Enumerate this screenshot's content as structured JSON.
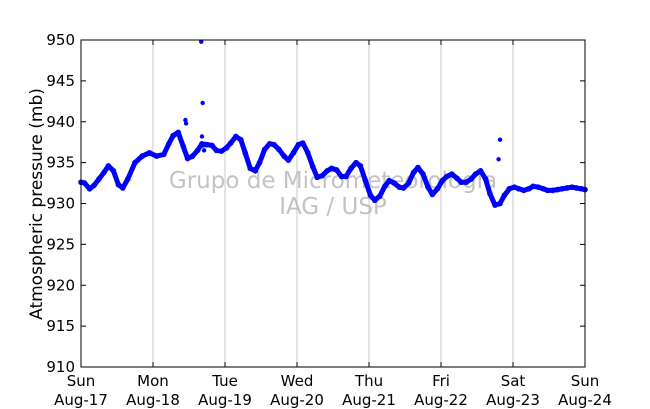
{
  "chart_data": {
    "type": "scatter",
    "title": "",
    "ylabel": "Atmospheric pressure (mb)",
    "xlabel": "",
    "ylim": [
      910,
      950
    ],
    "xlim": [
      0,
      7
    ],
    "yticks": [
      910,
      915,
      920,
      925,
      930,
      935,
      940,
      945,
      950
    ],
    "xticks": [
      {
        "pos": 0,
        "day": "Sun",
        "date": "Aug-17"
      },
      {
        "pos": 1,
        "day": "Mon",
        "date": "Aug-18"
      },
      {
        "pos": 2,
        "day": "Tue",
        "date": "Aug-19"
      },
      {
        "pos": 3,
        "day": "Wed",
        "date": "Aug-20"
      },
      {
        "pos": 4,
        "day": "Thu",
        "date": "Aug-21"
      },
      {
        "pos": 5,
        "day": "Fri",
        "date": "Aug-22"
      },
      {
        "pos": 6,
        "day": "Sat",
        "date": "Aug-23"
      },
      {
        "pos": 7,
        "day": "Sun",
        "date": "Aug-24"
      }
    ],
    "grid": "vertical",
    "color": "#0000ff",
    "watermark": [
      "Grupo de Micrometeorologia",
      "IAG / USP"
    ],
    "series": [
      {
        "x": [
          0.0,
          0.05,
          0.12,
          0.18,
          0.25,
          0.32,
          0.38,
          0.45,
          0.52,
          0.58,
          0.65,
          0.75,
          0.85,
          0.95,
          1.05,
          1.15,
          1.22,
          1.28,
          1.35,
          1.42,
          1.48,
          1.55,
          1.62,
          1.68,
          1.75,
          1.82,
          1.88,
          1.95,
          2.02,
          2.08,
          2.15,
          2.22,
          2.28,
          2.35,
          2.42,
          2.48,
          2.55,
          2.62,
          2.68,
          2.75,
          2.82,
          2.88,
          2.95,
          3.02,
          3.08,
          3.15,
          3.22,
          3.28,
          3.35,
          3.42,
          3.48,
          3.55,
          3.62,
          3.68,
          3.75,
          3.82,
          3.88,
          3.95,
          4.02,
          4.08,
          4.15,
          4.22,
          4.28,
          4.35,
          4.42,
          4.48,
          4.55,
          4.62,
          4.68,
          4.75,
          4.82,
          4.88,
          4.95,
          5.02,
          5.08,
          5.15,
          5.22,
          5.28,
          5.35,
          5.42,
          5.48,
          5.55,
          5.62,
          5.68,
          5.75,
          5.82,
          5.88,
          5.95,
          6.02,
          6.08,
          6.15,
          6.22,
          6.28,
          6.35,
          6.42,
          6.48,
          6.55,
          6.62,
          6.68,
          6.75,
          6.82,
          6.88,
          6.95,
          7.0
        ],
        "y": [
          932.6,
          932.5,
          931.8,
          932.2,
          933.0,
          933.8,
          934.6,
          934.0,
          932.3,
          931.9,
          933.0,
          935.0,
          935.8,
          936.2,
          935.8,
          936.0,
          937.3,
          938.3,
          938.7,
          937.0,
          935.5,
          935.8,
          936.5,
          937.3,
          937.2,
          937.1,
          936.5,
          936.4,
          936.8,
          937.4,
          938.2,
          937.8,
          936.2,
          934.3,
          934.0,
          935.0,
          936.6,
          937.3,
          937.2,
          936.6,
          935.8,
          935.3,
          936.2,
          937.2,
          937.4,
          936.2,
          934.5,
          933.2,
          933.4,
          934.0,
          934.3,
          934.1,
          933.3,
          933.3,
          934.3,
          935.0,
          934.6,
          932.8,
          931.0,
          930.4,
          930.9,
          932.1,
          932.8,
          932.5,
          932.0,
          931.9,
          932.5,
          933.8,
          934.4,
          933.6,
          932.0,
          931.1,
          931.8,
          932.8,
          933.3,
          933.6,
          933.1,
          932.6,
          932.6,
          933.0,
          933.6,
          934.0,
          933.0,
          931.2,
          929.8,
          930.0,
          931.0,
          931.8,
          932.0,
          931.8,
          931.6,
          931.8,
          932.1,
          932.0,
          931.8,
          931.6,
          931.6,
          931.7,
          931.8,
          931.9,
          932.0,
          931.9,
          931.8,
          931.7
        ]
      },
      {
        "name": "outliers",
        "x": [
          1.45,
          1.46,
          1.67,
          1.69,
          1.68,
          1.7,
          5.8,
          5.82,
          1.71
        ],
        "y": [
          940.2,
          939.8,
          949.8,
          942.3,
          938.2,
          937.1,
          935.4,
          937.8,
          936.5
        ]
      }
    ]
  }
}
